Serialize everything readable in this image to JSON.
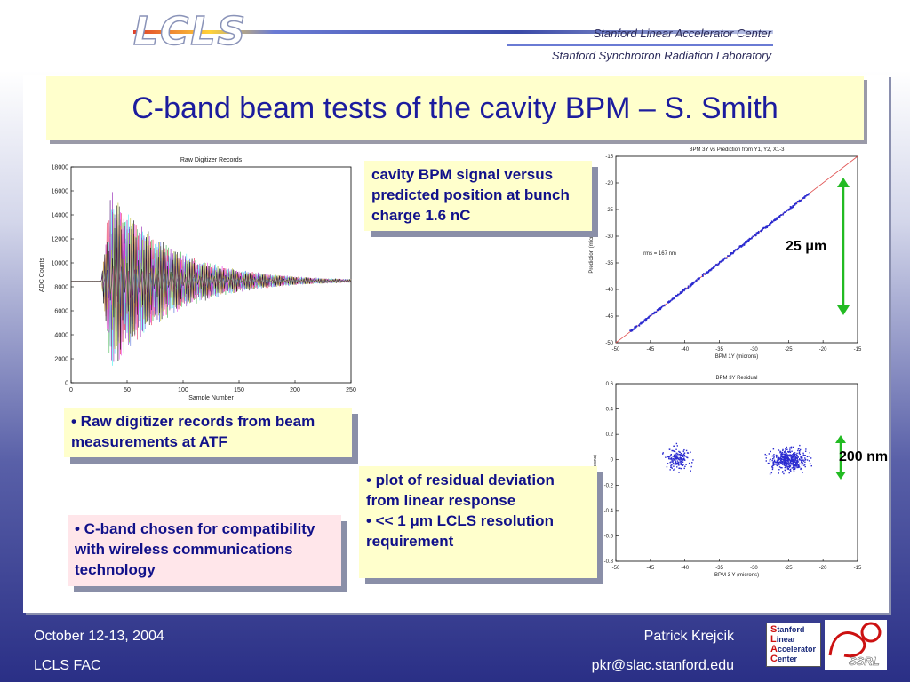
{
  "header": {
    "logo_text": "LCLS",
    "org_line1": "Stanford Linear Accelerator Center",
    "org_line2": "Stanford Synchrotron Radiation Laboratory"
  },
  "slide": {
    "title": "C-band beam tests of the cavity BPM – S. Smith",
    "notes": {
      "digitizer": "• Raw digitizer records from beam measurements at ATF",
      "cband": "• C-band chosen for compatibility with wireless communications technology",
      "signal": "cavity BPM signal versus predicted position at bunch charge 1.6 nC",
      "residual_line1": "• plot of residual deviation from linear response",
      "residual_line2": "• << 1 μm LCLS resolution requirement"
    },
    "annotations": {
      "span_25": "25 μm",
      "span_200": "200 nm"
    }
  },
  "chart_data": [
    {
      "type": "line",
      "title": "Raw Digitizer Records",
      "xlabel": "Sample Number",
      "ylabel": "ADC Counts",
      "xlim": [
        0,
        250
      ],
      "ylim": [
        0,
        18000
      ],
      "x_ticks": [
        "0",
        "50",
        "100",
        "150",
        "200",
        "250"
      ],
      "y_ticks": [
        "0",
        "2000",
        "4000",
        "6000",
        "8000",
        "10000",
        "12000",
        "14000",
        "16000",
        "18000"
      ],
      "baseline": 8500,
      "envelope_peak_sample": 35,
      "max_amplitude": 7800,
      "decay_end_sample": 250,
      "series_colors": [
        "#e6194b",
        "#3cb44b",
        "#4363d8",
        "#911eb4",
        "#46f0f0",
        "#f032e6",
        "#bcbd22",
        "#000000"
      ]
    },
    {
      "type": "scatter",
      "title": "BPM 3Y vs Prediction from Y1, Y2, X1-3",
      "xlabel": "BPM 1Y (microns)",
      "ylabel": "Prediction (microns)",
      "xlim": [
        -50,
        -15
      ],
      "ylim": [
        -50,
        -15
      ],
      "x_ticks": [
        "-50",
        "-45",
        "-40",
        "-35",
        "-30",
        "-25",
        "-20",
        "-15"
      ],
      "y_ticks": [
        "-15",
        "-20",
        "-25",
        "-30",
        "-35",
        "-40",
        "-45",
        "-50"
      ],
      "annotation": "rms = 167 nm",
      "fit_line": [
        [
          -50,
          -50
        ],
        [
          -15,
          -15
        ]
      ],
      "points_range": [
        -48,
        -22
      ]
    },
    {
      "type": "scatter",
      "title": "BPM 3Y Residual",
      "xlabel": "BPM 3 Y (microns)",
      "ylabel": "residual (microns)",
      "xlim": [
        -50,
        -15
      ],
      "ylim": [
        -0.8,
        0.6
      ],
      "x_ticks": [
        "-50",
        "-45",
        "-40",
        "-35",
        "-30",
        "-25",
        "-20",
        "-15"
      ],
      "y_ticks": [
        "0.6",
        "0.4",
        "0.2",
        "0",
        "-0.2",
        "-0.4",
        "-0.6",
        "-0.8"
      ],
      "clusters": [
        {
          "x_center": -41,
          "x_spread": 3,
          "y_spread": 0.15,
          "count": 170
        },
        {
          "x_center": -25,
          "x_spread": 4.5,
          "y_spread": 0.14,
          "count": 460
        }
      ]
    }
  ],
  "footer": {
    "date": "October 12-13, 2004",
    "event": "LCLS FAC",
    "author": "Patrick Krejcik",
    "email": "pkr@slac.stanford.edu",
    "slac_logo_letters": [
      "S",
      "L",
      "A",
      "C"
    ],
    "slac_logo_words": [
      "tanford",
      "inear",
      "ccelerator",
      "enter"
    ],
    "ssrl_text": "SSRL"
  }
}
